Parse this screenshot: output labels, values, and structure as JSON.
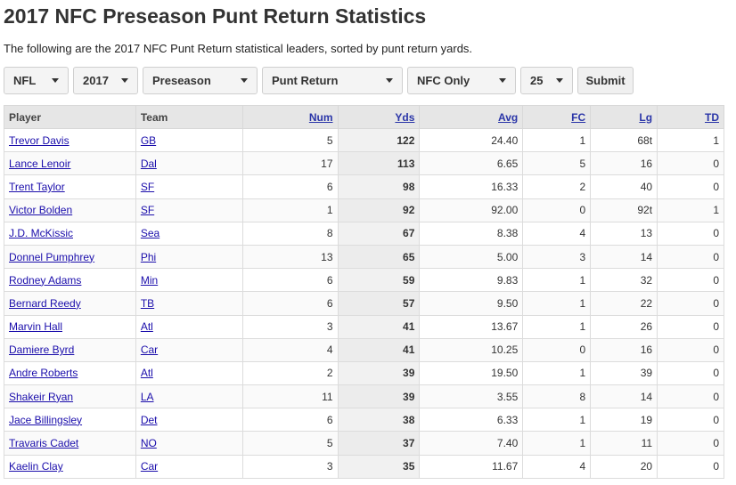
{
  "page": {
    "title": "2017 NFC Preseason Punt Return Statistics",
    "intro": "The following are the 2017 NFC Punt Return statistical leaders, sorted by punt return yards."
  },
  "filters": {
    "league": "NFL",
    "season": "2017",
    "season_type": "Preseason",
    "category": "Punt Return",
    "conference": "NFC Only",
    "limit": "25",
    "submit_label": "Submit"
  },
  "table": {
    "headers": {
      "player": "Player",
      "team": "Team",
      "num": "Num",
      "yds": "Yds",
      "avg": "Avg",
      "fc": "FC",
      "lg": "Lg",
      "td": "TD"
    },
    "rows": [
      {
        "player": "Trevor Davis",
        "team": "GB",
        "num": "5",
        "yds": "122",
        "avg": "24.40",
        "fc": "1",
        "lg": "68t",
        "td": "1"
      },
      {
        "player": "Lance Lenoir",
        "team": "Dal",
        "num": "17",
        "yds": "113",
        "avg": "6.65",
        "fc": "5",
        "lg": "16",
        "td": "0"
      },
      {
        "player": "Trent Taylor",
        "team": "SF",
        "num": "6",
        "yds": "98",
        "avg": "16.33",
        "fc": "2",
        "lg": "40",
        "td": "0"
      },
      {
        "player": "Victor Bolden",
        "team": "SF",
        "num": "1",
        "yds": "92",
        "avg": "92.00",
        "fc": "0",
        "lg": "92t",
        "td": "1"
      },
      {
        "player": "J.D. McKissic",
        "team": "Sea",
        "num": "8",
        "yds": "67",
        "avg": "8.38",
        "fc": "4",
        "lg": "13",
        "td": "0"
      },
      {
        "player": "Donnel Pumphrey",
        "team": "Phi",
        "num": "13",
        "yds": "65",
        "avg": "5.00",
        "fc": "3",
        "lg": "14",
        "td": "0"
      },
      {
        "player": "Rodney Adams",
        "team": "Min",
        "num": "6",
        "yds": "59",
        "avg": "9.83",
        "fc": "1",
        "lg": "32",
        "td": "0"
      },
      {
        "player": "Bernard Reedy",
        "team": "TB",
        "num": "6",
        "yds": "57",
        "avg": "9.50",
        "fc": "1",
        "lg": "22",
        "td": "0"
      },
      {
        "player": "Marvin Hall",
        "team": "Atl",
        "num": "3",
        "yds": "41",
        "avg": "13.67",
        "fc": "1",
        "lg": "26",
        "td": "0"
      },
      {
        "player": "Damiere Byrd",
        "team": "Car",
        "num": "4",
        "yds": "41",
        "avg": "10.25",
        "fc": "0",
        "lg": "16",
        "td": "0"
      },
      {
        "player": "Andre Roberts",
        "team": "Atl",
        "num": "2",
        "yds": "39",
        "avg": "19.50",
        "fc": "1",
        "lg": "39",
        "td": "0"
      },
      {
        "player": "Shakeir Ryan",
        "team": "LA",
        "num": "11",
        "yds": "39",
        "avg": "3.55",
        "fc": "8",
        "lg": "14",
        "td": "0"
      },
      {
        "player": "Jace Billingsley",
        "team": "Det",
        "num": "6",
        "yds": "38",
        "avg": "6.33",
        "fc": "1",
        "lg": "19",
        "td": "0"
      },
      {
        "player": "Travaris Cadet",
        "team": "NO",
        "num": "5",
        "yds": "37",
        "avg": "7.40",
        "fc": "1",
        "lg": "11",
        "td": "0"
      },
      {
        "player": "Kaelin Clay",
        "team": "Car",
        "num": "3",
        "yds": "35",
        "avg": "11.67",
        "fc": "4",
        "lg": "20",
        "td": "0"
      }
    ]
  }
}
